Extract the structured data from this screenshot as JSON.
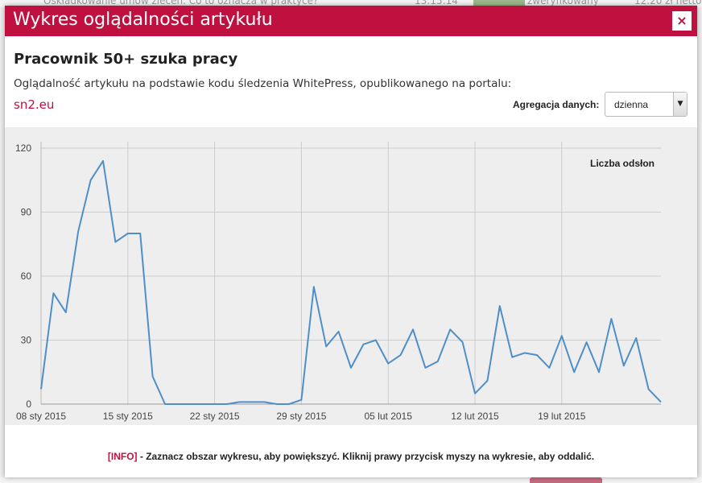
{
  "background": {
    "top_text": "Oskładkowanie umów zleceń. Co to oznacza w praktyce?",
    "top_time": "13:15:14",
    "top_badge": "zweryfikowany",
    "top_right": "12.20 zł netto"
  },
  "modal": {
    "title": "Wykres oglądalności artykułu",
    "close_label": "×",
    "article_title": "Pracownik 50+ szuka pracy",
    "description": "Oglądalność artykułu na podstawie kodu śledzenia WhitePress, opublikowanego na portalu:",
    "portal": "sn2.eu",
    "aggregation_label": "Agregacja danych:",
    "aggregation_value": "dzienna",
    "info_tag": "[INFO]",
    "info_text": " - Zaznacz obszar wykresu, aby powiększyć. Kliknij prawy przycisk myszy na wykresie, aby oddalić."
  },
  "colors": {
    "header": "#c0103f",
    "line": "#4f8fc8",
    "plot_bg": "#eeeeee",
    "grid": "#cccccc"
  },
  "chart_data": {
    "type": "line",
    "title": "",
    "legend": "Liczba odsłon",
    "legend_position": "top-right",
    "grid": true,
    "ylim": [
      0,
      120
    ],
    "yticks": [
      0,
      30,
      60,
      90,
      120
    ],
    "x_start": "2015-01-08",
    "xtick_labels": [
      "08 sty 2015",
      "15 sty 2015",
      "22 sty 2015",
      "29 sty 2015",
      "05 lut 2015",
      "12 lut 2015",
      "19 lut 2015"
    ],
    "series": [
      {
        "name": "Liczba odsłon",
        "values": [
          7,
          52,
          43,
          81,
          105,
          114,
          76,
          80,
          80,
          13,
          0,
          0,
          0,
          0,
          0,
          0,
          1,
          1,
          1,
          0,
          0,
          2,
          55,
          27,
          34,
          17,
          28,
          30,
          19,
          23,
          35,
          17,
          20,
          35,
          29,
          5,
          11,
          46,
          22,
          24,
          23,
          17,
          32,
          15,
          29,
          15,
          40,
          18,
          31,
          7,
          1
        ]
      }
    ]
  }
}
